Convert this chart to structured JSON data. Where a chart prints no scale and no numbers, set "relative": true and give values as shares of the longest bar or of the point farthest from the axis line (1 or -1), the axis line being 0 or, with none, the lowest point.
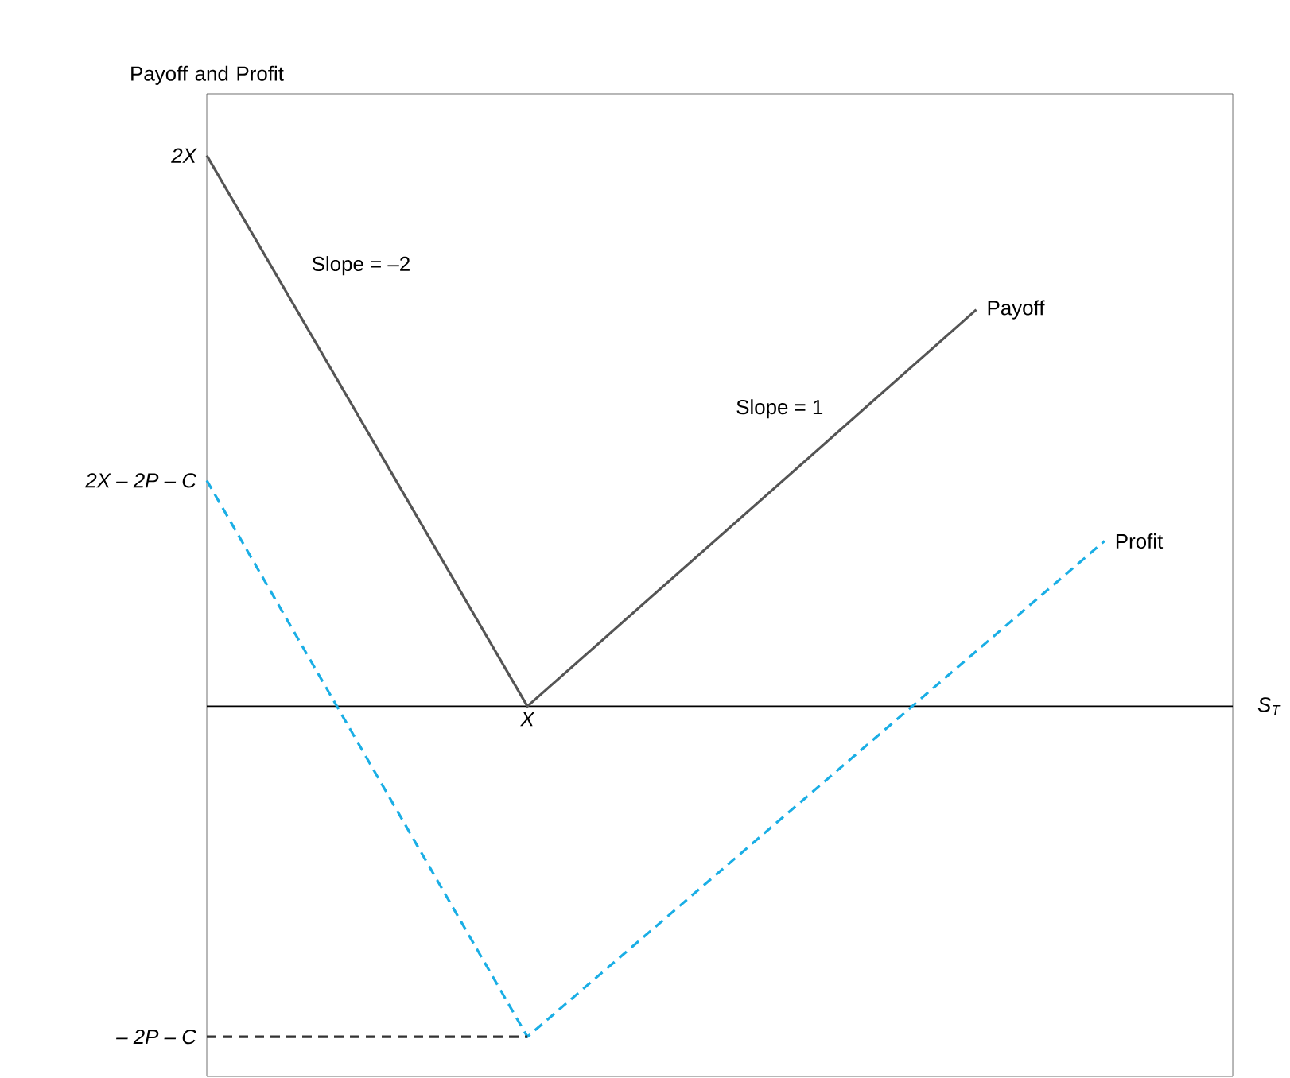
{
  "chart_data": {
    "type": "line",
    "relative": true,
    "xlabel": "S$_{T}$",
    "ylabel": "Payoff and Profit",
    "categories": [
      null,
      null,
      null,
      null,
      null,
      null,
      null,
      null,
      null,
      null,
      null,
      null,
      null,
      null,
      null,
      null,
      null
    ],
    "marker": "none",
    "annotations": [
      "2X",
      "2X – 2P – C",
      "– 2P – C",
      "Slope = –2",
      "Slope = 1",
      {
        "text": "X",
        "y": 0
      }
    ],
    "series": [
      {
        "name": "Payoff",
        "color": "#555555",
        "line_style": "solid",
        "values": [
          1,
          null,
          null,
          null,
          null,
          0,
          null,
          null,
          null,
          null,
          null,
          null,
          0.72,
          null,
          null,
          null,
          null
        ]
      },
      {
        "name": "Profit",
        "color": "#1aaee5",
        "line_style": "dashed",
        "values": [
          0.41,
          null,
          null,
          null,
          null,
          -0.6,
          null,
          null,
          null,
          null,
          null,
          null,
          null,
          null,
          0.3,
          null,
          null
        ]
      },
      {
        "color": "#333333",
        "line_style": "dashed",
        "values": [
          -0.6,
          null,
          null,
          null,
          null,
          -0.6,
          null,
          null,
          null,
          null,
          null,
          null,
          null,
          null,
          null,
          null,
          null
        ]
      }
    ]
  }
}
